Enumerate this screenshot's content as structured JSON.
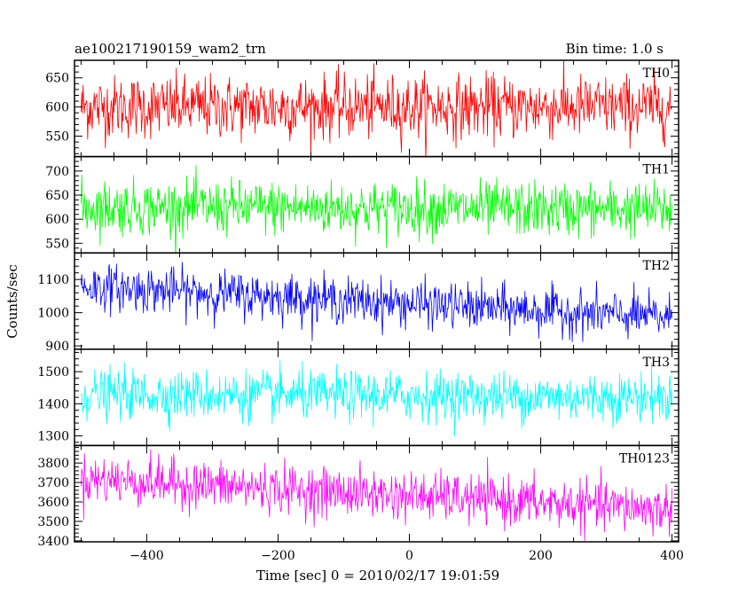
{
  "chart_data": {
    "type": "line",
    "title": "ae100217190159_wam2_trn",
    "bin_time_label": "Bin time: 1.0 s",
    "xlabel": "Time [sec] 0 = 2010/02/17 19:01:59",
    "ylabel": "Counts/sec",
    "xlim": [
      -510,
      410
    ],
    "x_range": [
      -500,
      400
    ],
    "x_ticks": [
      -400,
      -200,
      0,
      200,
      400
    ],
    "x_tick_labels": [
      "−400",
      "−200",
      "0",
      "200",
      "400"
    ],
    "panels": [
      {
        "name": "TH0",
        "color": "#ff0000",
        "ylim": [
          515,
          680
        ],
        "y_ticks": [
          550,
          600,
          650
        ],
        "y_tick_labels": [
          "550",
          "600",
          "650"
        ],
        "mean_start": 600,
        "mean_end": 600,
        "noise_sd": 27
      },
      {
        "name": "TH1",
        "color": "#00ff00",
        "ylim": [
          530,
          730
        ],
        "y_ticks": [
          550,
          600,
          650,
          700
        ],
        "y_tick_labels": [
          "550",
          "600",
          "650",
          "700"
        ],
        "mean_start": 625,
        "mean_end": 620,
        "noise_sd": 28
      },
      {
        "name": "TH2",
        "color": "#0000ff",
        "ylim": [
          890,
          1180
        ],
        "y_ticks": [
          900,
          1000,
          1100
        ],
        "y_tick_labels": [
          "900",
          "1000",
          "1100"
        ],
        "mean_start": 1080,
        "mean_end": 985,
        "noise_sd": 34
      },
      {
        "name": "TH3",
        "color": "#00ffff",
        "ylim": [
          1270,
          1570
        ],
        "y_ticks": [
          1300,
          1400,
          1500
        ],
        "y_tick_labels": [
          "1300",
          "1400",
          "1500"
        ],
        "mean_start": 1430,
        "mean_end": 1420,
        "noise_sd": 38
      },
      {
        "name": "TH0123",
        "color": "#ff00ff",
        "ylim": [
          3395,
          3890
        ],
        "y_ticks": [
          3400,
          3500,
          3600,
          3700,
          3800
        ],
        "y_tick_labels": [
          "3400",
          "3500",
          "3600",
          "3700",
          "3800"
        ],
        "mean_start": 3720,
        "mean_end": 3560,
        "noise_sd": 62
      }
    ]
  }
}
